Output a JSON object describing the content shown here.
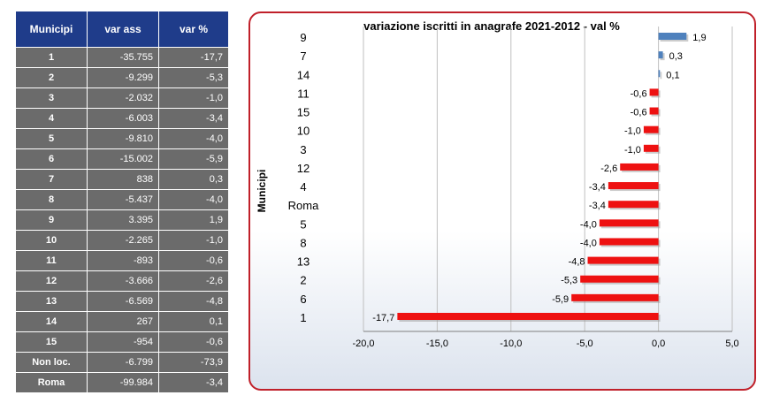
{
  "table": {
    "headers": [
      "Municipi",
      "var ass",
      "var %"
    ],
    "rows": [
      [
        "1",
        "-35.755",
        "-17,7"
      ],
      [
        "2",
        "-9.299",
        "-5,3"
      ],
      [
        "3",
        "-2.032",
        "-1,0"
      ],
      [
        "4",
        "-6.003",
        "-3,4"
      ],
      [
        "5",
        "-9.810",
        "-4,0"
      ],
      [
        "6",
        "-15.002",
        "-5,9"
      ],
      [
        "7",
        "838",
        "0,3"
      ],
      [
        "8",
        "-5.437",
        "-4,0"
      ],
      [
        "9",
        "3.395",
        "1,9"
      ],
      [
        "10",
        "-2.265",
        "-1,0"
      ],
      [
        "11",
        "-893",
        "-0,6"
      ],
      [
        "12",
        "-3.666",
        "-2,6"
      ],
      [
        "13",
        "-6.569",
        "-4,8"
      ],
      [
        "14",
        "267",
        "0,1"
      ],
      [
        "15",
        "-954",
        "-0,6"
      ],
      [
        "Non loc.",
        "-6.799",
        "-73,9"
      ],
      [
        "Roma",
        "-99.984",
        "-3,4"
      ]
    ]
  },
  "chart_data": {
    "type": "bar",
    "orientation": "horizontal",
    "title": "variazione iscritti in anagrafe 2021-2012 - val %",
    "ylabel": "Municipi",
    "xlabel": "",
    "categories": [
      "9",
      "7",
      "14",
      "11",
      "15",
      "10",
      "3",
      "12",
      "4",
      "Roma",
      "5",
      "8",
      "13",
      "2",
      "6",
      "1"
    ],
    "values": [
      1.9,
      0.3,
      0.1,
      -0.6,
      -0.6,
      -1.0,
      -1.0,
      -2.6,
      -3.4,
      -3.4,
      -4.0,
      -4.0,
      -4.8,
      -5.3,
      -5.9,
      -17.7
    ],
    "labels": [
      "1,9",
      "0,3",
      "0,1",
      "-0,6",
      "-0,6",
      "-1,0",
      "-1,0",
      "-2,6",
      "-3,4",
      "-3,4",
      "-4,0",
      "-4,0",
      "-4,8",
      "-5,3",
      "-5,9",
      "-17,7"
    ],
    "xlim": [
      -20,
      5
    ],
    "xticks": [
      -20,
      -15,
      -10,
      -5,
      0,
      5
    ],
    "xtick_labels": [
      "-20,0",
      "-15,0",
      "-10,0",
      "-5,0",
      "0,0",
      "5,0"
    ],
    "grid": true,
    "colors": {
      "positive": "#4f81bd",
      "negative": "#ee1111",
      "frame": "#c0202a",
      "header": "#1f3c8a",
      "cell": "#6b6b6b"
    }
  }
}
